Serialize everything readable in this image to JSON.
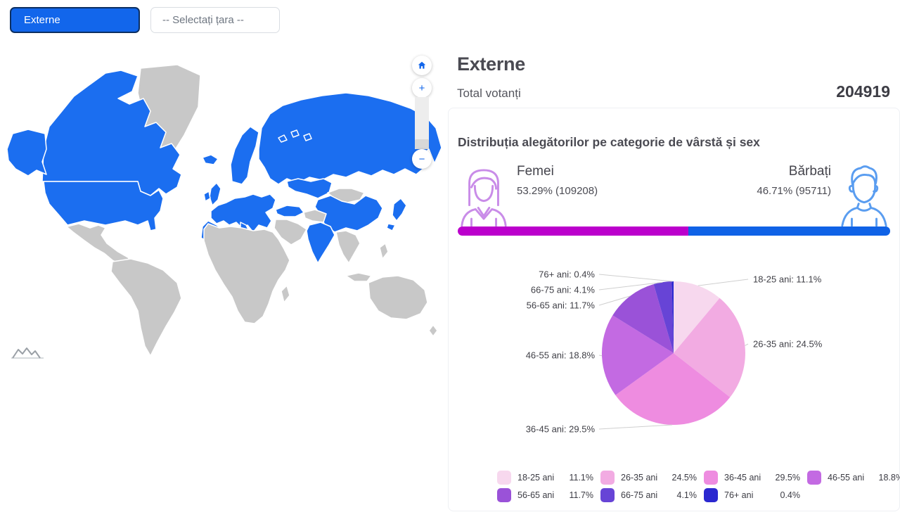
{
  "toolbar": {
    "externe_label": "Externe",
    "country_placeholder": "-- Selectați țara --"
  },
  "map": {
    "colors": {
      "highlight": "#1b6ef0",
      "land": "#c8c8c8",
      "border": "#ffffff"
    },
    "highlighted_regions": [
      "alaska",
      "canada",
      "usa",
      "iceland",
      "uk",
      "ireland",
      "scandinavia",
      "europe",
      "iberia",
      "italy",
      "turkey",
      "russia",
      "central-asia",
      "china",
      "india",
      "japan-north",
      "japan-south",
      "arctic-islands-1",
      "arctic-islands-2",
      "arctic-islands-3"
    ],
    "controls": {
      "zoom_in": "+",
      "zoom_out": "−"
    }
  },
  "panel": {
    "title": "Externe",
    "total_label": "Total votanți",
    "total_value": "204919"
  },
  "distribution": {
    "title": "Distribuția alegătorilor pe categorie de vârstă și sex",
    "female": {
      "label": "Femei",
      "stat": "53.29% (109208)",
      "percent": 53.29,
      "color": "#bb00cc"
    },
    "male": {
      "label": "Bărbați",
      "stat": "46.71% (95711)",
      "percent": 46.71,
      "color": "#0f62e6"
    }
  },
  "chart_data": {
    "type": "pie",
    "title": "Distribuția alegătorilor pe categorie de vârstă și sex",
    "categories": [
      "18-25 ani",
      "26-35 ani",
      "36-45 ani",
      "46-55 ani",
      "56-65 ani",
      "66-75 ani",
      "76+ ani"
    ],
    "values": [
      11.1,
      24.5,
      29.5,
      18.8,
      11.7,
      4.1,
      0.4
    ],
    "colors": [
      "#f7d8ee",
      "#f2abe2",
      "#ee8ce0",
      "#c36ae2",
      "#9a52d8",
      "#6744d6",
      "#2b28d0"
    ],
    "unit": "%",
    "start_angle": -90,
    "direction": "clockwise",
    "legend_position": "bottom"
  }
}
